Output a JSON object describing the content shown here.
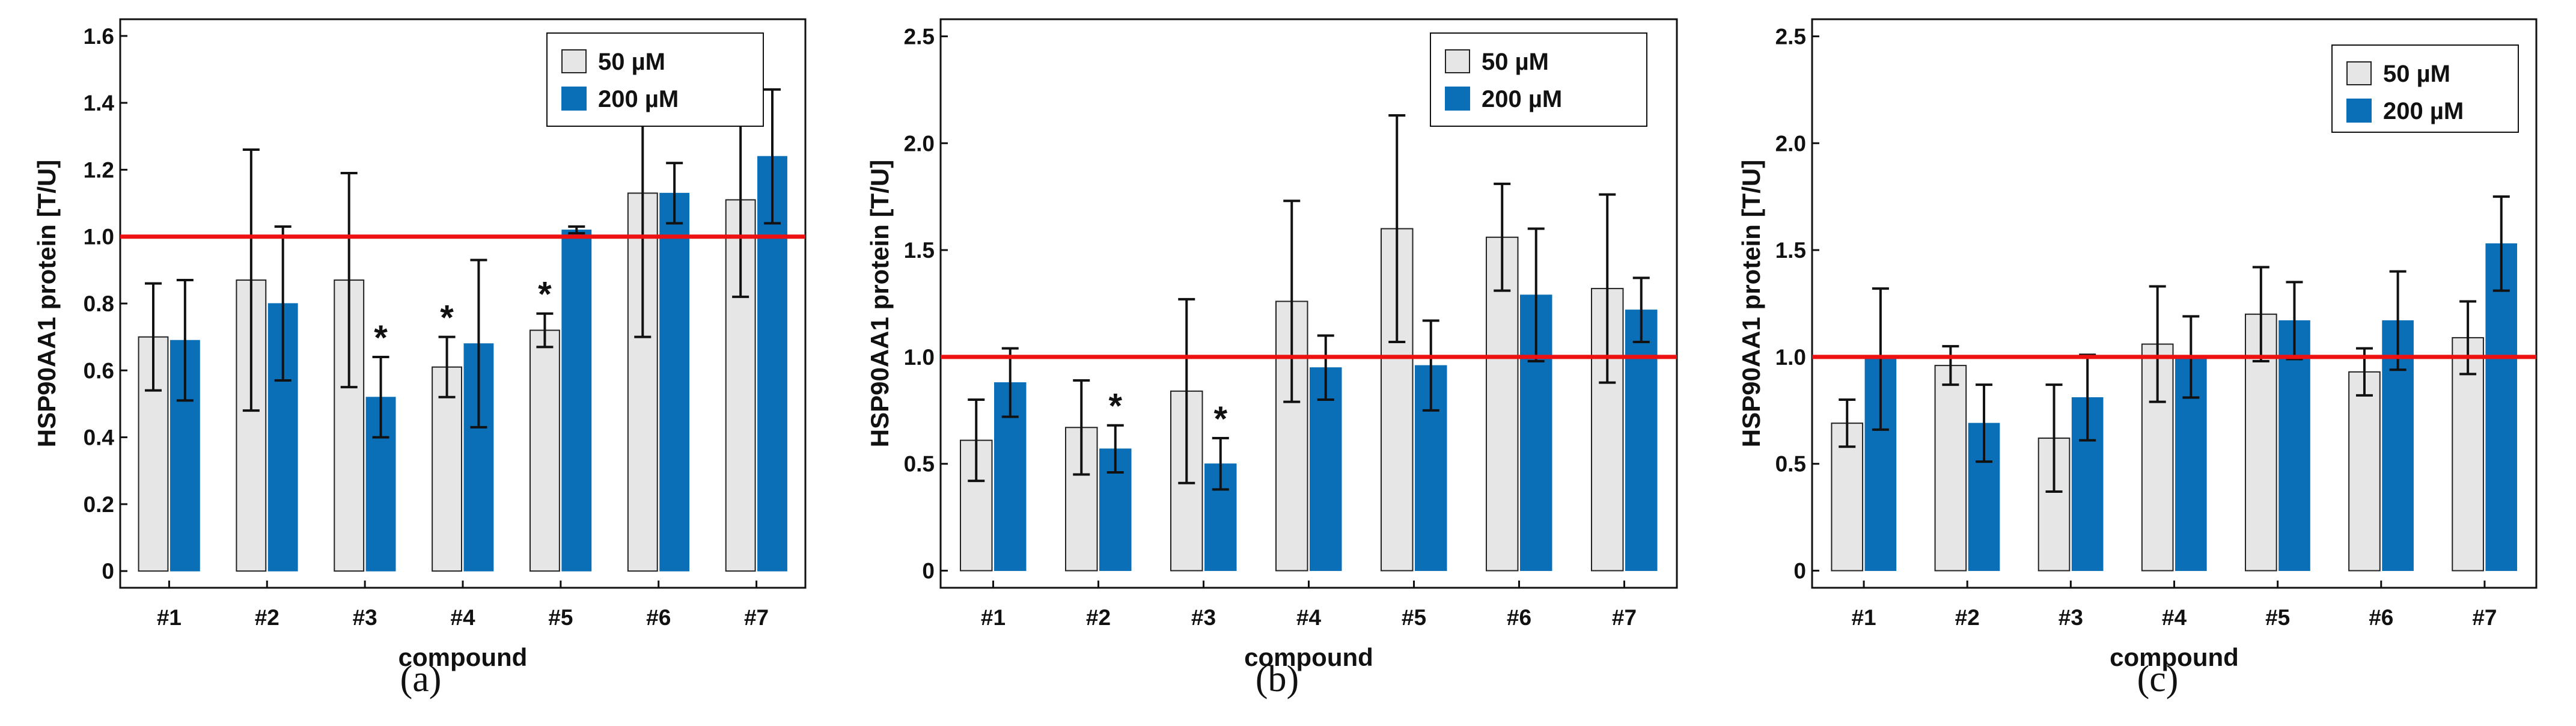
{
  "colors": {
    "low_dose": "#e6e6e6",
    "high_dose": "#0a6fb7",
    "reference": "#ee1111",
    "ink": "#111111"
  },
  "chart_data": [
    {
      "type": "bar",
      "panel_label": "(a)",
      "xlabel": "compound",
      "ylabel": "HSP90AA1  protein [T/U]",
      "categories": [
        "#1",
        "#2",
        "#3",
        "#4",
        "#5",
        "#6",
        "#7"
      ],
      "ylim": [
        -0.05,
        1.65
      ],
      "yticks": [
        0,
        0.2,
        0.4,
        0.6,
        0.8,
        1.0,
        1.2,
        1.4,
        1.6
      ],
      "ytick_labels": [
        "0",
        "0.2",
        "0.4",
        "0.6",
        "0.8",
        "1.0",
        "1.2",
        "1.4",
        "1.6"
      ],
      "reference_line": 1.0,
      "legend_position": "top-right",
      "series": [
        {
          "name": "50 µM",
          "color": "#e6e6e6",
          "values": [
            0.7,
            0.87,
            0.87,
            0.61,
            0.72,
            1.13,
            1.11
          ],
          "error": [
            0.16,
            0.39,
            0.32,
            0.09,
            0.05,
            0.43,
            0.29
          ]
        },
        {
          "name": "200 µM",
          "color": "#0a6fb7",
          "values": [
            0.69,
            0.8,
            0.52,
            0.68,
            1.02,
            1.13,
            1.24
          ],
          "error": [
            0.18,
            0.23,
            0.12,
            0.25,
            0.01,
            0.09,
            0.2
          ]
        }
      ],
      "annotations": [
        {
          "category": "#3",
          "series": "200 µM",
          "text": "*"
        },
        {
          "category": "#4",
          "series": "50 µM",
          "text": "*"
        },
        {
          "category": "#5",
          "series": "50 µM",
          "text": "*"
        }
      ]
    },
    {
      "type": "bar",
      "panel_label": "(b)",
      "xlabel": "compound",
      "ylabel": "HSP90AA1  protein [T/U]",
      "categories": [
        "#1",
        "#2",
        "#3",
        "#4",
        "#5",
        "#6",
        "#7"
      ],
      "ylim": [
        -0.08,
        2.58
      ],
      "yticks": [
        0,
        0.5,
        1.0,
        1.5,
        2.0,
        2.5
      ],
      "ytick_labels": [
        "0",
        "0.5",
        "1.0",
        "1.5",
        "2.0",
        "2.5"
      ],
      "reference_line": 1.0,
      "legend_position": "top-right",
      "series": [
        {
          "name": "50 µM",
          "color": "#e6e6e6",
          "values": [
            0.61,
            0.67,
            0.84,
            1.26,
            1.6,
            1.56,
            1.32
          ],
          "error": [
            0.19,
            0.22,
            0.43,
            0.47,
            0.53,
            0.25,
            0.44
          ]
        },
        {
          "name": "200 µM",
          "color": "#0a6fb7",
          "values": [
            0.88,
            0.57,
            0.5,
            0.95,
            0.96,
            1.29,
            1.22
          ],
          "error": [
            0.16,
            0.11,
            0.12,
            0.15,
            0.21,
            0.31,
            0.15
          ]
        }
      ],
      "annotations": [
        {
          "category": "#2",
          "series": "200 µM",
          "text": "*"
        },
        {
          "category": "#3",
          "series": "200 µM",
          "text": "*"
        }
      ]
    },
    {
      "type": "bar",
      "panel_label": "(c)",
      "xlabel": "compound",
      "ylabel": "HSP90AA1  protein [T/U]",
      "categories": [
        "#1",
        "#2",
        "#3",
        "#4",
        "#5",
        "#6",
        "#7"
      ],
      "ylim": [
        -0.08,
        2.58
      ],
      "yticks": [
        0,
        0.5,
        1.0,
        1.5,
        2.0,
        2.5
      ],
      "ytick_labels": [
        "0",
        "0.5",
        "1.0",
        "1.5",
        "2.0",
        "2.5"
      ],
      "reference_line": 1.0,
      "legend_position": "top-right",
      "series": [
        {
          "name": "50 µM",
          "color": "#e6e6e6",
          "values": [
            0.69,
            0.96,
            0.62,
            1.06,
            1.2,
            0.93,
            1.09
          ],
          "error": [
            0.11,
            0.09,
            0.25,
            0.27,
            0.22,
            0.11,
            0.17
          ]
        },
        {
          "name": "200 µM",
          "color": "#0a6fb7",
          "values": [
            0.99,
            0.69,
            0.81,
            1.0,
            1.17,
            1.17,
            1.53
          ],
          "error": [
            0.33,
            0.18,
            0.2,
            0.19,
            0.18,
            0.23,
            0.22
          ]
        }
      ],
      "annotations": []
    }
  ]
}
